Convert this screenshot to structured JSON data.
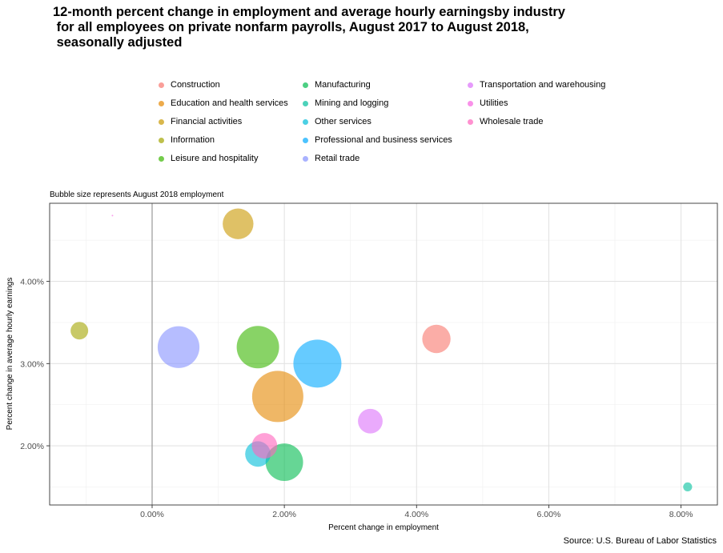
{
  "chart_data": {
    "type": "scatter",
    "title": "12-month percent change in employment and average hourly earningsby industry\n for all employees on private nonfarm payrolls, August 2017 to August 2018,\n seasonally adjusted",
    "subtitle": "Bubble size represents August 2018 employment",
    "caption": "Source: U.S. Bureau of Labor Statistics",
    "xlabel": "Percent change in employment",
    "ylabel": "Percent change in average hourly earnings",
    "xlim": [
      -1.55,
      8.55
    ],
    "ylim": [
      1.28,
      4.95
    ],
    "x_ticks": [
      0,
      2,
      4,
      6,
      8
    ],
    "x_tick_labels": [
      "0.00%",
      "2.00%",
      "4.00%",
      "6.00%",
      "8.00%"
    ],
    "y_ticks": [
      2,
      3,
      4
    ],
    "y_tick_labels": [
      "2.00%",
      "3.00%",
      "4.00%"
    ],
    "grid": true,
    "zero_line": true,
    "legend_position": "top",
    "size_variable": "August 2018 employment (thousands)",
    "series": [
      {
        "name": "Construction",
        "color": "#F8766D",
        "x": 4.3,
        "y": 3.3,
        "size": 7300
      },
      {
        "name": "Education and health services",
        "color": "#E58700",
        "x": 1.9,
        "y": 2.6,
        "size": 23900
      },
      {
        "name": "Financial activities",
        "color": "#C99800",
        "x": 1.3,
        "y": 4.7,
        "size": 8600
      },
      {
        "name": "Information",
        "color": "#A3A500",
        "x": -1.1,
        "y": 3.4,
        "size": 2800
      },
      {
        "name": "Leisure and hospitality",
        "color": "#39B600",
        "x": 1.6,
        "y": 3.2,
        "size": 16400
      },
      {
        "name": "Manufacturing",
        "color": "#00BB4E",
        "x": 2.0,
        "y": 1.8,
        "size": 12750
      },
      {
        "name": "Mining and logging",
        "color": "#00BF9C",
        "x": 8.1,
        "y": 1.5,
        "size": 730
      },
      {
        "name": "Other services",
        "color": "#00BCD8",
        "x": 1.6,
        "y": 1.9,
        "size": 5900
      },
      {
        "name": "Professional and business services",
        "color": "#00A9FF",
        "x": 2.5,
        "y": 3.0,
        "size": 21000
      },
      {
        "name": "Retail trade",
        "color": "#8591FF",
        "x": 0.4,
        "y": 3.2,
        "size": 15900
      },
      {
        "name": "Transportation and warehousing",
        "color": "#DC71FA",
        "x": 3.3,
        "y": 2.3,
        "size": 5500
      },
      {
        "name": "Utilities",
        "color": "#F763E0",
        "x": -0.6,
        "y": 4.8,
        "size": 550
      },
      {
        "name": "Wholesale trade",
        "color": "#FF62BC",
        "x": 1.7,
        "y": 2.0,
        "size": 5900
      }
    ]
  }
}
